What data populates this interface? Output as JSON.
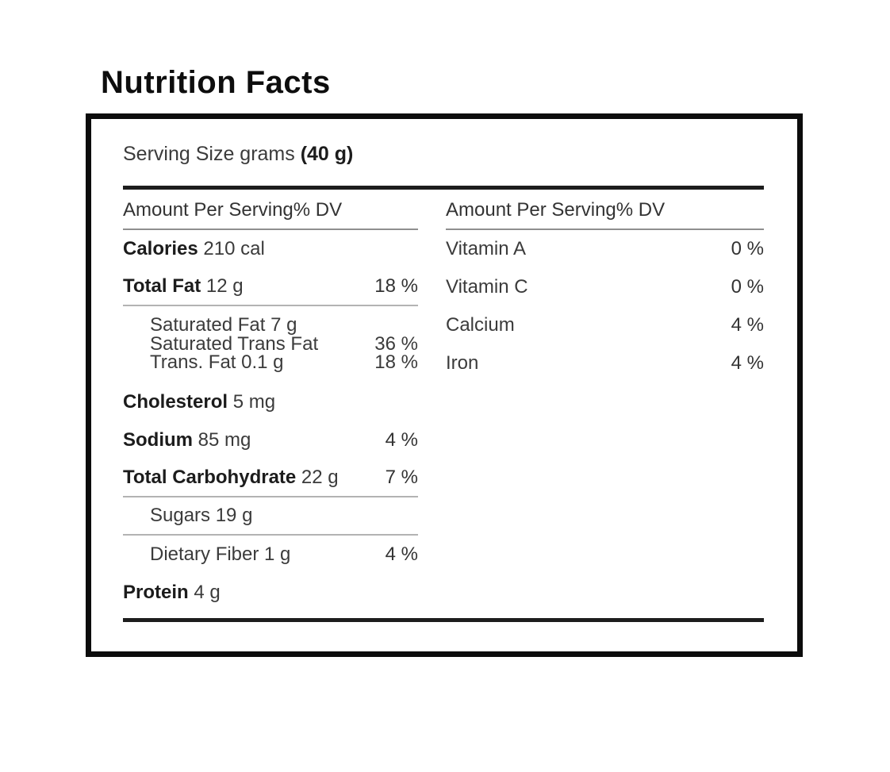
{
  "page": {
    "title": "Nutrition Facts"
  },
  "label": {
    "serving": {
      "prefix": "Serving Size grams",
      "amount": "(40 g)"
    },
    "left_column": {
      "header": "Amount Per Serving% DV",
      "rows": {
        "calories": {
          "name": "Calories",
          "value": "210 cal",
          "dv": ""
        },
        "total_fat": {
          "name": "Total Fat",
          "value": "12 g",
          "dv": "18 %"
        },
        "fat_group": {
          "line1": {
            "text": "Saturated Fat 7 g",
            "dv": ""
          },
          "line2": {
            "text": "Saturated Trans Fat",
            "dv": "36 %"
          },
          "line3": {
            "text": "Trans. Fat 0.1 g",
            "dv": "18 %"
          }
        },
        "cholesterol": {
          "name": "Cholesterol",
          "value": "5 mg",
          "dv": ""
        },
        "sodium": {
          "name": "Sodium",
          "value": "85 mg",
          "dv": "4 %"
        },
        "total_carbohydrate": {
          "name": "Total Carbohydrate",
          "value": "22 g",
          "dv": "7 %"
        },
        "sugars": {
          "text": "Sugars 19 g",
          "dv": ""
        },
        "dietary_fiber": {
          "text": "Dietary Fiber 1 g",
          "dv": "4 %"
        },
        "protein": {
          "name": "Protein",
          "value": "4 g",
          "dv": ""
        }
      }
    },
    "right_column": {
      "header": "Amount Per Serving% DV",
      "rows": [
        {
          "name": "Vitamin A",
          "dv": "0 %"
        },
        {
          "name": "Vitamin C",
          "dv": "0 %"
        },
        {
          "name": "Calcium",
          "dv": "4 %"
        },
        {
          "name": "Iron",
          "dv": "4 %"
        }
      ]
    }
  }
}
